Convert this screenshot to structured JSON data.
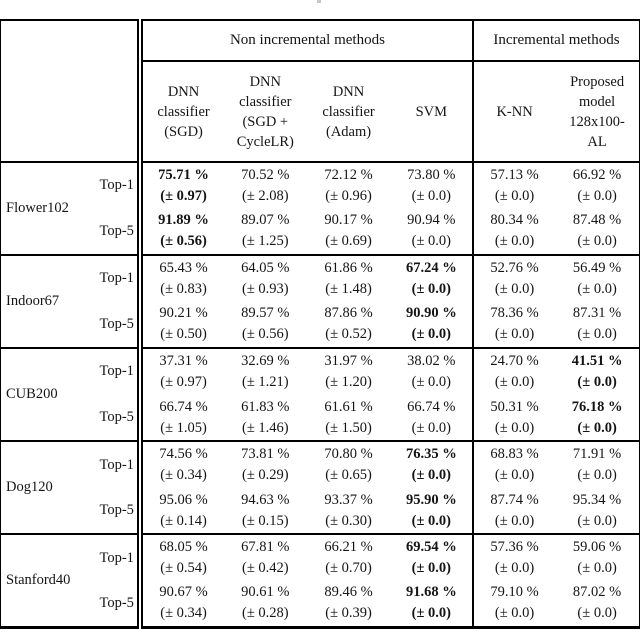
{
  "caption_fragment_present": true,
  "table": {
    "section_headers": {
      "non_incremental": "Non incremental methods",
      "incremental": "Incremental methods"
    },
    "method_columns": [
      {
        "name": "dnn-sgd",
        "lines": [
          "DNN",
          "classifier",
          "(SGD)"
        ]
      },
      {
        "name": "dnn-cyclelr",
        "lines": [
          "DNN",
          "classifier",
          "(SGD +",
          "CycleLR)"
        ]
      },
      {
        "name": "dnn-adam",
        "lines": [
          "DNN",
          "classifier",
          "(Adam)"
        ]
      },
      {
        "name": "svm",
        "lines": [
          "SVM"
        ]
      },
      {
        "name": "knn",
        "lines": [
          "K-NN"
        ]
      },
      {
        "name": "proposed",
        "lines": [
          "Proposed",
          "model",
          "128x100-",
          "AL"
        ]
      }
    ],
    "datasets": [
      {
        "name": "Flower102",
        "rows": [
          {
            "metric": "Top-1",
            "cells": [
              {
                "value": "75.71 %",
                "pm": "(± 0.97)",
                "bold": true
              },
              {
                "value": "70.52 %",
                "pm": "(± 2.08)"
              },
              {
                "value": "72.12 %",
                "pm": "(± 0.96)"
              },
              {
                "value": "73.80 %",
                "pm": "(± 0.0)"
              },
              {
                "value": "57.13 %",
                "pm": "(± 0.0)"
              },
              {
                "value": "66.92 %",
                "pm": "(± 0.0)"
              }
            ]
          },
          {
            "metric": "Top-5",
            "cells": [
              {
                "value": "91.89 %",
                "pm": "(± 0.56)",
                "bold": true
              },
              {
                "value": "89.07 %",
                "pm": "(± 1.25)"
              },
              {
                "value": "90.17 %",
                "pm": "(± 0.69)"
              },
              {
                "value": "90.94 %",
                "pm": "(± 0.0)"
              },
              {
                "value": "80.34 %",
                "pm": "(± 0.0)"
              },
              {
                "value": "87.48 %",
                "pm": "(± 0.0)"
              }
            ]
          }
        ]
      },
      {
        "name": "Indoor67",
        "rows": [
          {
            "metric": "Top-1",
            "cells": [
              {
                "value": "65.43 %",
                "pm": "(± 0.83)"
              },
              {
                "value": "64.05 %",
                "pm": "(± 0.93)"
              },
              {
                "value": "61.86 %",
                "pm": "(± 1.48)"
              },
              {
                "value": "67.24 %",
                "pm": "(± 0.0)",
                "bold": true
              },
              {
                "value": "52.76 %",
                "pm": "(± 0.0)"
              },
              {
                "value": "56.49 %",
                "pm": "(± 0.0)"
              }
            ]
          },
          {
            "metric": "Top-5",
            "cells": [
              {
                "value": "90.21 %",
                "pm": "(± 0.50)"
              },
              {
                "value": "89.57 %",
                "pm": "(± 0.56)"
              },
              {
                "value": "87.86 %",
                "pm": "(± 0.52)"
              },
              {
                "value": "90.90 %",
                "pm": "(± 0.0)",
                "bold": true
              },
              {
                "value": "78.36 %",
                "pm": "(± 0.0)"
              },
              {
                "value": "87.31 %",
                "pm": "(± 0.0)"
              }
            ]
          }
        ]
      },
      {
        "name": "CUB200",
        "rows": [
          {
            "metric": "Top-1",
            "cells": [
              {
                "value": "37.31 %",
                "pm": "(± 0.97)"
              },
              {
                "value": "32.69 %",
                "pm": "(± 1.21)"
              },
              {
                "value": "31.97 %",
                "pm": "(± 1.20)"
              },
              {
                "value": "38.02 %",
                "pm": "(± 0.0)"
              },
              {
                "value": "24.70 %",
                "pm": "(± 0.0)"
              },
              {
                "value": "41.51 %",
                "pm": "(± 0.0)",
                "bold": true
              }
            ]
          },
          {
            "metric": "Top-5",
            "cells": [
              {
                "value": "66.74 %",
                "pm": "(± 1.05)"
              },
              {
                "value": "61.83 %",
                "pm": "(± 1.46)"
              },
              {
                "value": "61.61 %",
                "pm": "(± 1.50)"
              },
              {
                "value": "66.74 %",
                "pm": "(± 0.0)"
              },
              {
                "value": "50.31 %",
                "pm": "(± 0.0)"
              },
              {
                "value": "76.18 %",
                "pm": "(± 0.0)",
                "bold": true
              }
            ]
          }
        ]
      },
      {
        "name": "Dog120",
        "rows": [
          {
            "metric": "Top-1",
            "cells": [
              {
                "value": "74.56 %",
                "pm": "(± 0.34)"
              },
              {
                "value": "73.81 %",
                "pm": "(± 0.29)"
              },
              {
                "value": "70.80 %",
                "pm": "(± 0.65)"
              },
              {
                "value": "76.35 %",
                "pm": "(± 0.0)",
                "bold": true
              },
              {
                "value": "68.83 %",
                "pm": "(± 0.0)"
              },
              {
                "value": "71.91 %",
                "pm": "(± 0.0)"
              }
            ]
          },
          {
            "metric": "Top-5",
            "cells": [
              {
                "value": "95.06 %",
                "pm": "(± 0.14)"
              },
              {
                "value": "94.63 %",
                "pm": "(± 0.15)"
              },
              {
                "value": "93.37 %",
                "pm": "(± 0.30)"
              },
              {
                "value": "95.90 %",
                "pm": "(± 0.0)",
                "bold": true
              },
              {
                "value": "87.74 %",
                "pm": "(± 0.0)"
              },
              {
                "value": "95.34 %",
                "pm": "(± 0.0)"
              }
            ]
          }
        ]
      },
      {
        "name": "Stanford40",
        "rows": [
          {
            "metric": "Top-1",
            "cells": [
              {
                "value": "68.05 %",
                "pm": "(± 0.54)"
              },
              {
                "value": "67.81 %",
                "pm": "(± 0.42)"
              },
              {
                "value": "66.21 %",
                "pm": "(± 0.70)"
              },
              {
                "value": "69.54 %",
                "pm": "(± 0.0)",
                "bold": true
              },
              {
                "value": "57.36 %",
                "pm": "(± 0.0)"
              },
              {
                "value": "59.06 %",
                "pm": "(± 0.0)"
              }
            ]
          },
          {
            "metric": "Top-5",
            "cells": [
              {
                "value": "90.67 %",
                "pm": "(± 0.34)"
              },
              {
                "value": "90.61 %",
                "pm": "(± 0.28)"
              },
              {
                "value": "89.46 %",
                "pm": "(± 0.39)"
              },
              {
                "value": "91.68 %",
                "pm": "(± 0.0)",
                "bold": true
              },
              {
                "value": "79.10 %",
                "pm": "(± 0.0)"
              },
              {
                "value": "87.02 %",
                "pm": "(± 0.0)"
              }
            ]
          }
        ]
      }
    ]
  }
}
